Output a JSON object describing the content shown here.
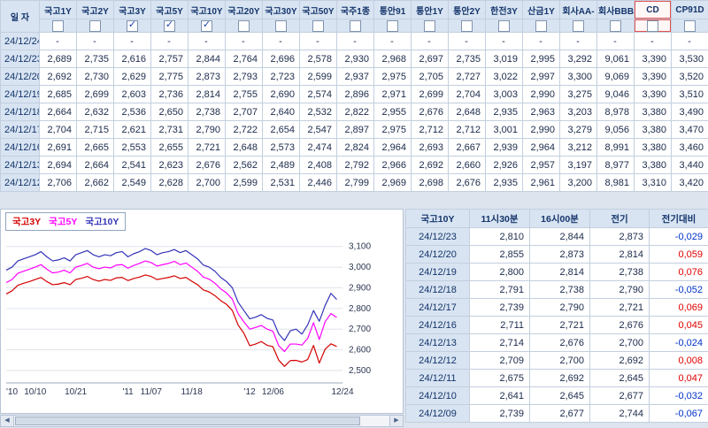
{
  "icons": {
    "checkmark": "✓",
    "scroll_left": "◀",
    "scroll_right": "▶"
  },
  "colors": {
    "up": "#e00000",
    "down": "#0033cc"
  },
  "rates_table": {
    "date_header": "일 자",
    "columns": [
      {
        "label": "국고1Y",
        "checked": false
      },
      {
        "label": "국고2Y",
        "checked": false
      },
      {
        "label": "국고3Y",
        "checked": true
      },
      {
        "label": "국고5Y",
        "checked": true
      },
      {
        "label": "국고10Y",
        "checked": true
      },
      {
        "label": "국고20Y",
        "checked": false
      },
      {
        "label": "국고30Y",
        "checked": false
      },
      {
        "label": "국고50Y",
        "checked": false
      },
      {
        "label": "국주1종",
        "checked": false
      },
      {
        "label": "통안91",
        "checked": false
      },
      {
        "label": "통안1Y",
        "checked": false
      },
      {
        "label": "통안2Y",
        "checked": false
      },
      {
        "label": "한전3Y",
        "checked": false
      },
      {
        "label": "산금1Y",
        "checked": false
      },
      {
        "label": "회사AA-",
        "checked": false
      },
      {
        "label": "회사BBB-",
        "checked": false
      },
      {
        "label": "CD",
        "checked": false,
        "highlight": true
      },
      {
        "label": "CP91D",
        "checked": false
      }
    ],
    "rows": [
      {
        "date": "24/12/24",
        "values": [
          "-",
          "-",
          "-",
          "-",
          "-",
          "-",
          "-",
          "-",
          "-",
          "-",
          "-",
          "-",
          "-",
          "-",
          "-",
          "-",
          "-",
          "-"
        ]
      },
      {
        "date": "24/12/23",
        "values": [
          "2,689",
          "2,735",
          "2,616",
          "2,757",
          "2,844",
          "2,764",
          "2,696",
          "2,578",
          "2,930",
          "2,968",
          "2,697",
          "2,735",
          "3,019",
          "2,995",
          "3,292",
          "9,061",
          "3,390",
          "3,530"
        ]
      },
      {
        "date": "24/12/20",
        "values": [
          "2,692",
          "2,730",
          "2,629",
          "2,775",
          "2,873",
          "2,793",
          "2,723",
          "2,599",
          "2,937",
          "2,975",
          "2,705",
          "2,727",
          "3,022",
          "2,997",
          "3,300",
          "9,069",
          "3,390",
          "3,520"
        ]
      },
      {
        "date": "24/12/19",
        "values": [
          "2,685",
          "2,699",
          "2,603",
          "2,736",
          "2,814",
          "2,755",
          "2,690",
          "2,574",
          "2,896",
          "2,971",
          "2,699",
          "2,704",
          "3,003",
          "2,990",
          "3,275",
          "9,046",
          "3,390",
          "3,510"
        ]
      },
      {
        "date": "24/12/18",
        "values": [
          "2,664",
          "2,632",
          "2,536",
          "2,650",
          "2,738",
          "2,707",
          "2,640",
          "2,532",
          "2,822",
          "2,955",
          "2,676",
          "2,648",
          "2,935",
          "2,963",
          "3,203",
          "8,978",
          "3,380",
          "3,490"
        ]
      },
      {
        "date": "24/12/17",
        "values": [
          "2,704",
          "2,715",
          "2,621",
          "2,731",
          "2,790",
          "2,722",
          "2,654",
          "2,547",
          "2,897",
          "2,975",
          "2,712",
          "2,712",
          "3,001",
          "2,990",
          "3,279",
          "9,056",
          "3,380",
          "3,470"
        ]
      },
      {
        "date": "24/12/16",
        "values": [
          "2,691",
          "2,665",
          "2,553",
          "2,655",
          "2,721",
          "2,648",
          "2,573",
          "2,474",
          "2,824",
          "2,964",
          "2,693",
          "2,667",
          "2,939",
          "2,964",
          "3,212",
          "8,991",
          "3,380",
          "3,460"
        ]
      },
      {
        "date": "24/12/13",
        "values": [
          "2,694",
          "2,664",
          "2,541",
          "2,623",
          "2,676",
          "2,562",
          "2,489",
          "2,408",
          "2,792",
          "2,966",
          "2,692",
          "2,660",
          "2,926",
          "2,957",
          "3,197",
          "8,977",
          "3,380",
          "3,440"
        ]
      },
      {
        "date": "24/12/12",
        "values": [
          "2,706",
          "2,662",
          "2,549",
          "2,628",
          "2,700",
          "2,599",
          "2,531",
          "2,446",
          "2,799",
          "2,969",
          "2,698",
          "2,676",
          "2,935",
          "2,961",
          "3,200",
          "8,981",
          "3,310",
          "3,420"
        ]
      }
    ]
  },
  "chart_data": {
    "type": "line",
    "ylim": [
      2440,
      3150
    ],
    "x_max": 58,
    "y_ticks": [
      {
        "v": 3100,
        "label": "3,100"
      },
      {
        "v": 3000,
        "label": "3,000"
      },
      {
        "v": 2900,
        "label": "2,900"
      },
      {
        "v": 2800,
        "label": "2,800"
      },
      {
        "v": 2700,
        "label": "2,700"
      },
      {
        "v": 2600,
        "label": "2,600"
      },
      {
        "v": 2500,
        "label": "2,500"
      }
    ],
    "x_ticks": [
      {
        "i": 0,
        "label": "'10"
      },
      {
        "i": 5,
        "label": "10/10"
      },
      {
        "i": 12,
        "label": "10/21"
      },
      {
        "i": 21,
        "label": "'11"
      },
      {
        "i": 25,
        "label": "11/07"
      },
      {
        "i": 32,
        "label": "11/18"
      },
      {
        "i": 42,
        "label": "'12"
      },
      {
        "i": 46,
        "label": "12/06"
      },
      {
        "i": 58,
        "label": "12/24"
      }
    ],
    "series": [
      {
        "name": "국고3Y",
        "color": "#d40000",
        "values": [
          2870,
          2885,
          2912,
          2922,
          2930,
          2940,
          2950,
          2930,
          2915,
          2918,
          2925,
          2915,
          2940,
          2946,
          2955,
          2940,
          2932,
          2940,
          2936,
          2948,
          2950,
          2935,
          2945,
          2952,
          2962,
          2955,
          2940,
          2945,
          2950,
          2958,
          2945,
          2950,
          2932,
          2915,
          2890,
          2880,
          2862,
          2838,
          2820,
          2790,
          2720,
          2680,
          2620,
          2628,
          2640,
          2622,
          2615,
          2550,
          2520,
          2548,
          2549,
          2541,
          2553,
          2621,
          2536,
          2603,
          2629,
          2616
        ]
      },
      {
        "name": "국고5Y",
        "color": "#ff00ff",
        "values": [
          2925,
          2940,
          2970,
          2980,
          2990,
          3000,
          3012,
          2990,
          2972,
          2976,
          2985,
          2972,
          3000,
          3008,
          3018,
          3000,
          2992,
          3000,
          2996,
          3010,
          3012,
          2995,
          3008,
          3018,
          3030,
          3022,
          3005,
          3012,
          3018,
          3028,
          3012,
          3020,
          3000,
          2980,
          2952,
          2942,
          2922,
          2895,
          2875,
          2845,
          2775,
          2735,
          2700,
          2708,
          2718,
          2700,
          2690,
          2620,
          2592,
          2628,
          2628,
          2623,
          2655,
          2731,
          2650,
          2736,
          2775,
          2757
        ]
      },
      {
        "name": "국고10Y",
        "color": "#3333b8",
        "values": [
          2985,
          3000,
          3030,
          3040,
          3050,
          3060,
          3075,
          3050,
          3030,
          3035,
          3045,
          3030,
          3060,
          3070,
          3080,
          3060,
          3050,
          3060,
          3055,
          3070,
          3075,
          3050,
          3065,
          3075,
          3090,
          3080,
          3060,
          3070,
          3075,
          3085,
          3070,
          3080,
          3060,
          3040,
          3010,
          3000,
          2980,
          2950,
          2930,
          2900,
          2830,
          2790,
          2750,
          2758,
          2770,
          2752,
          2744,
          2677,
          2645,
          2692,
          2700,
          2676,
          2721,
          2790,
          2738,
          2814,
          2873,
          2844
        ]
      }
    ]
  },
  "detail_table": {
    "columns": [
      "국고10Y",
      "11시30분",
      "16시00분",
      "전기",
      "전기대비"
    ],
    "rows": [
      {
        "date": "24/12/23",
        "t1130": "2,810",
        "t1600": "2,844",
        "prev": "2,873",
        "change": "-0,029",
        "dir": "down"
      },
      {
        "date": "24/12/20",
        "t1130": "2,855",
        "t1600": "2,873",
        "prev": "2,814",
        "change": "0,059",
        "dir": "up"
      },
      {
        "date": "24/12/19",
        "t1130": "2,800",
        "t1600": "2,814",
        "prev": "2,738",
        "change": "0,076",
        "dir": "up"
      },
      {
        "date": "24/12/18",
        "t1130": "2,791",
        "t1600": "2,738",
        "prev": "2,790",
        "change": "-0,052",
        "dir": "down"
      },
      {
        "date": "24/12/17",
        "t1130": "2,739",
        "t1600": "2,790",
        "prev": "2,721",
        "change": "0,069",
        "dir": "up"
      },
      {
        "date": "24/12/16",
        "t1130": "2,711",
        "t1600": "2,721",
        "prev": "2,676",
        "change": "0,045",
        "dir": "up"
      },
      {
        "date": "24/12/13",
        "t1130": "2,714",
        "t1600": "2,676",
        "prev": "2,700",
        "change": "-0,024",
        "dir": "down"
      },
      {
        "date": "24/12/12",
        "t1130": "2,709",
        "t1600": "2,700",
        "prev": "2,692",
        "change": "0,008",
        "dir": "up"
      },
      {
        "date": "24/12/11",
        "t1130": "2,675",
        "t1600": "2,692",
        "prev": "2,645",
        "change": "0,047",
        "dir": "up"
      },
      {
        "date": "24/12/10",
        "t1130": "2,641",
        "t1600": "2,645",
        "prev": "2,677",
        "change": "-0,032",
        "dir": "down"
      },
      {
        "date": "24/12/09",
        "t1130": "2,739",
        "t1600": "2,677",
        "prev": "2,744",
        "change": "-0,067",
        "dir": "down"
      }
    ]
  }
}
